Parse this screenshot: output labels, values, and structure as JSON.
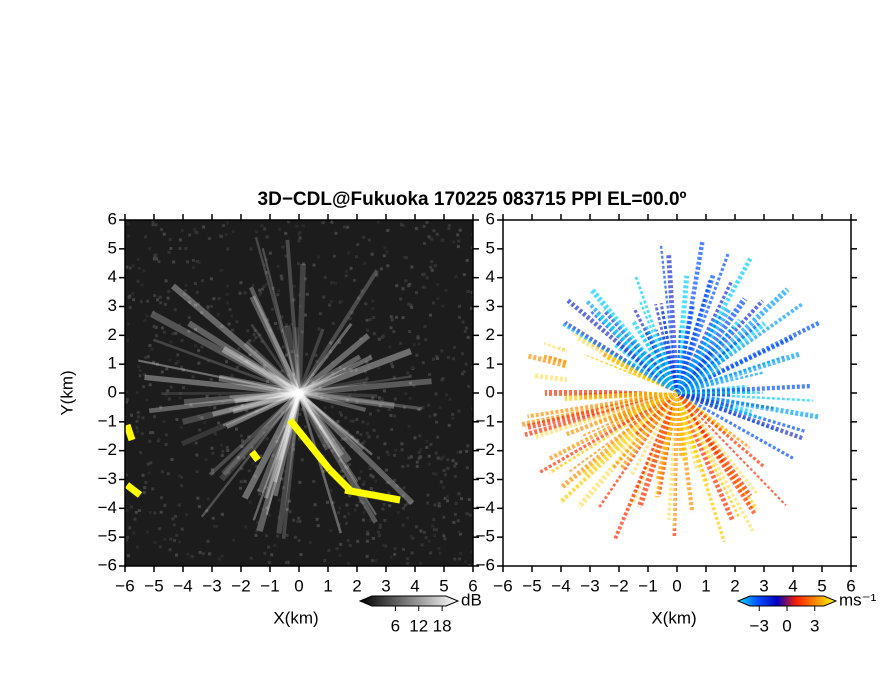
{
  "chart_data": [
    {
      "type": "heatmap",
      "title": "3D−CDL@Fukuoka 170225 083715 PPI EL=00.0º",
      "xlabel": "X(km)",
      "ylabel": "Y(km)",
      "xlim": [
        -6,
        6
      ],
      "ylim": [
        -6,
        6
      ],
      "xticks": [
        {
          "value": -6,
          "label": "−6"
        },
        {
          "value": -5,
          "label": "−5"
        },
        {
          "value": -4,
          "label": "−4"
        },
        {
          "value": -3,
          "label": "−3"
        },
        {
          "value": -2,
          "label": "−2"
        },
        {
          "value": -1,
          "label": "−1"
        },
        0,
        1,
        2,
        3,
        4,
        5,
        6
      ],
      "yticks": [
        {
          "value": -6,
          "label": "−6"
        },
        {
          "value": -5,
          "label": "−5"
        },
        {
          "value": -4,
          "label": "−4"
        },
        {
          "value": -3,
          "label": "−3"
        },
        {
          "value": -2,
          "label": "−2"
        },
        {
          "value": -1,
          "label": "−1"
        },
        0,
        1,
        2,
        3,
        4,
        5,
        6
      ],
      "colorbar": {
        "unit": "dB",
        "clim": [
          0,
          19
        ],
        "ticks": [
          6,
          12,
          18
        ],
        "colors": [
          "#000000",
          "#555555",
          "#aaaaaa",
          "#ffffff"
        ]
      }
    },
    {
      "type": "heatmap",
      "xlabel": "X(km)",
      "xlim": [
        -6,
        6
      ],
      "ylim": [
        -6,
        6
      ],
      "xticks": [
        {
          "value": -6,
          "label": "−6"
        },
        {
          "value": -5,
          "label": "−5"
        },
        {
          "value": -4,
          "label": "−4"
        },
        {
          "value": -3,
          "label": "−3"
        },
        {
          "value": -2,
          "label": "−2"
        },
        {
          "value": -1,
          "label": "−1"
        },
        0,
        1,
        2,
        3,
        4,
        5,
        6
      ],
      "yticks": [
        {
          "value": -6,
          "label": "−6"
        },
        {
          "value": -5,
          "label": "−5"
        },
        {
          "value": -4,
          "label": "−4"
        },
        {
          "value": -3,
          "label": "−3"
        },
        {
          "value": -2,
          "label": "−2"
        },
        {
          "value": -1,
          "label": "−1"
        },
        0,
        1,
        2,
        3,
        4,
        5,
        6
      ],
      "colorbar": {
        "unit": "ms⁻¹",
        "clim": [
          -4,
          4
        ],
        "ticks": [
          {
            "value": -3,
            "label": "−3"
          },
          0,
          3
        ],
        "colors": [
          "#00e0ff",
          "#0050ff",
          "#0000c0",
          "#ff2000",
          "#ff9000",
          "#ffff00"
        ]
      }
    }
  ]
}
